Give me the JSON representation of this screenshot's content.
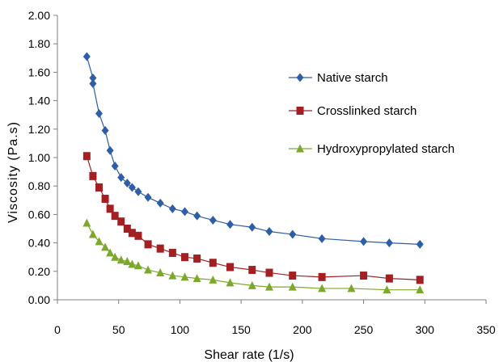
{
  "chart_data": {
    "type": "line",
    "xlabel": "Shear rate (1/s)",
    "ylabel": "Viscosity (Pa.s)",
    "xlim": [
      0,
      350
    ],
    "ylim": [
      0,
      2.0
    ],
    "xticks": [
      0,
      50,
      100,
      150,
      200,
      250,
      300,
      350
    ],
    "xtick_labels": [
      "0",
      "50",
      "100",
      "150",
      "200",
      "250",
      "300",
      "350"
    ],
    "yticks": [
      0,
      0.2,
      0.4,
      0.6,
      0.8,
      1.0,
      1.2,
      1.4,
      1.6,
      1.8,
      2.0
    ],
    "ytick_labels": [
      "0.00",
      "0.20",
      "0.40",
      "0.60",
      "0.80",
      "1.00",
      "1.20",
      "1.40",
      "1.60",
      "1.80",
      "2.00"
    ],
    "grid": false,
    "legend_position": "top-right",
    "series": [
      {
        "name": "Native starch",
        "marker": "diamond",
        "color": "#2E5EA8",
        "x": [
          24,
          29,
          29,
          34,
          39,
          43,
          47,
          52,
          57,
          61,
          66,
          74,
          84,
          94,
          104,
          114,
          127,
          141,
          159,
          173,
          192,
          216,
          250,
          271,
          296
        ],
        "y": [
          1.71,
          1.56,
          1.52,
          1.31,
          1.19,
          1.05,
          0.94,
          0.86,
          0.82,
          0.79,
          0.76,
          0.72,
          0.68,
          0.64,
          0.62,
          0.59,
          0.56,
          0.53,
          0.51,
          0.48,
          0.46,
          0.43,
          0.41,
          0.4,
          0.39
        ]
      },
      {
        "name": "Crosslinked starch",
        "marker": "square",
        "color": "#A31F22",
        "x": [
          24,
          29,
          34,
          39,
          43,
          47,
          52,
          57,
          61,
          66,
          74,
          84,
          94,
          104,
          114,
          127,
          141,
          159,
          173,
          192,
          216,
          250,
          271,
          296
        ],
        "y": [
          1.01,
          0.87,
          0.79,
          0.71,
          0.64,
          0.59,
          0.55,
          0.5,
          0.47,
          0.45,
          0.39,
          0.36,
          0.33,
          0.3,
          0.29,
          0.26,
          0.23,
          0.21,
          0.19,
          0.17,
          0.16,
          0.17,
          0.15,
          0.14
        ]
      },
      {
        "name": "Hydroxypropylated starch",
        "marker": "triangle",
        "color": "#7EA82D",
        "x": [
          24,
          29,
          34,
          39,
          43,
          47,
          52,
          57,
          61,
          66,
          74,
          84,
          94,
          104,
          114,
          127,
          141,
          159,
          173,
          192,
          216,
          240,
          269,
          296
        ],
        "y": [
          0.54,
          0.46,
          0.41,
          0.37,
          0.33,
          0.3,
          0.28,
          0.27,
          0.25,
          0.24,
          0.21,
          0.19,
          0.17,
          0.16,
          0.15,
          0.14,
          0.12,
          0.1,
          0.09,
          0.09,
          0.08,
          0.08,
          0.07,
          0.07
        ]
      }
    ]
  }
}
